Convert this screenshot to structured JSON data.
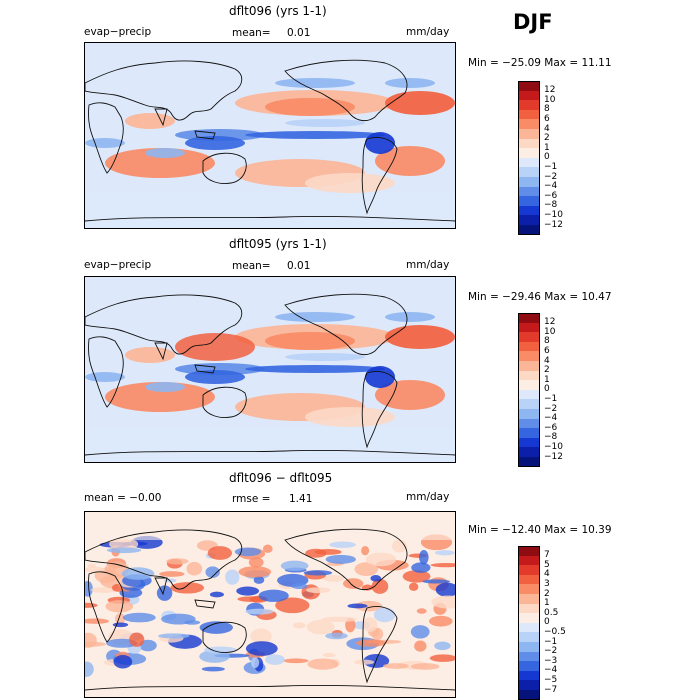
{
  "season": "DJF",
  "panels": [
    {
      "title": "dflt096 (yrs 1-1)",
      "left": "evap−precip",
      "middle_label": "mean=",
      "middle_value": "0.01",
      "right": "mm/day",
      "minmax": "Min = −25.09 Max =  11.11",
      "levels": [
        "12",
        "10",
        "8",
        "6",
        "4",
        "2",
        "1",
        "0",
        "−1",
        "−2",
        "−4",
        "−6",
        "−8",
        "−10",
        "−12"
      ],
      "colors": [
        "#8e0c12",
        "#c41a1c",
        "#e23b2c",
        "#f2613f",
        "#f98b66",
        "#fbb597",
        "#fcd8c5",
        "#fdeee5",
        "#dde9fb",
        "#b9d2f8",
        "#8eb6f1",
        "#5f8de8",
        "#3566e0",
        "#1438d1",
        "#0c1fa9",
        "#06137a"
      ]
    },
    {
      "title": "dflt095 (yrs 1-1)",
      "left": "evap−precip",
      "middle_label": "mean=",
      "middle_value": "0.01",
      "right": "mm/day",
      "minmax": "Min = −29.46 Max =  10.47",
      "levels": [
        "12",
        "10",
        "8",
        "6",
        "4",
        "2",
        "1",
        "0",
        "−1",
        "−2",
        "−4",
        "−6",
        "−8",
        "−10",
        "−12"
      ],
      "colors": [
        "#8e0c12",
        "#c41a1c",
        "#e23b2c",
        "#f2613f",
        "#f98b66",
        "#fbb597",
        "#fcd8c5",
        "#fdeee5",
        "#dde9fb",
        "#b9d2f8",
        "#8eb6f1",
        "#5f8de8",
        "#3566e0",
        "#1438d1",
        "#0c1fa9",
        "#06137a"
      ]
    },
    {
      "title": "dflt096 − dflt095",
      "left": "mean =   −0.00",
      "middle_label": "rmse =",
      "middle_value": "1.41",
      "right": "mm/day",
      "minmax": "Min = −12.40 Max =  10.39",
      "levels": [
        "7",
        "5",
        "4",
        "3",
        "2",
        "1",
        "0.5",
        "0",
        "−0.5",
        "−1",
        "−2",
        "−3",
        "−4",
        "−5",
        "−7"
      ],
      "colors": [
        "#8e0c12",
        "#c41a1c",
        "#e23b2c",
        "#f2613f",
        "#f98b66",
        "#fbb597",
        "#fcd8c5",
        "#fdeee5",
        "#dde9fb",
        "#b9d2f8",
        "#8eb6f1",
        "#5f8de8",
        "#3566e0",
        "#1438d1",
        "#0c1fa9",
        "#06137a"
      ]
    }
  ]
}
